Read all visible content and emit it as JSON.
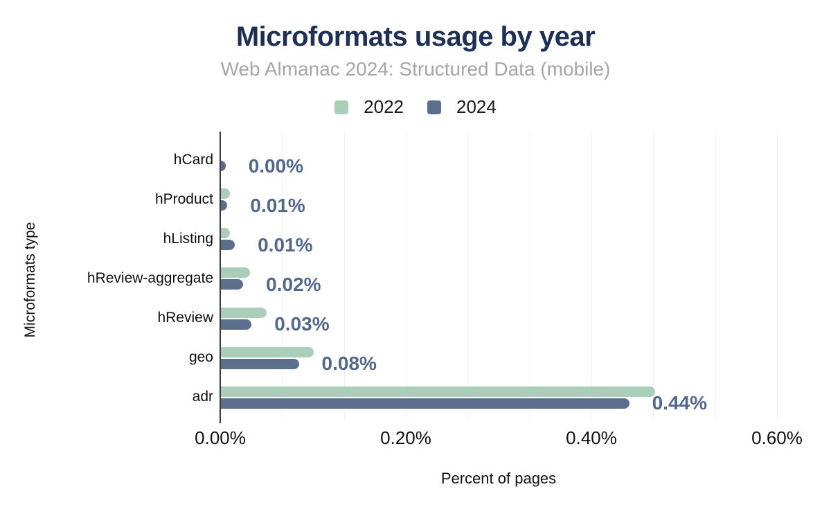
{
  "header": {
    "title": "Microformats usage by year",
    "subtitle": "Web Almanac 2024: Structured Data (mobile)"
  },
  "legend": {
    "items": [
      {
        "label": "2022",
        "color": "#abceba"
      },
      {
        "label": "2024",
        "color": "#5b6e8e"
      }
    ]
  },
  "chart_data": {
    "type": "bar",
    "orientation": "horizontal",
    "title": "Microformats usage by year",
    "subtitle": "Web Almanac 2024: Structured Data (mobile)",
    "xlabel": "Percent of pages",
    "ylabel": "Microformats type",
    "categories": [
      "hCard",
      "hProduct",
      "hListing",
      "hReview-aggregate",
      "hReview",
      "geo",
      "adr"
    ],
    "series": [
      {
        "name": "2022",
        "color": "#abceba",
        "values": [
          0,
          0.01,
          0.01,
          0.031,
          0.049,
          0.1,
          0.468
        ]
      },
      {
        "name": "2024",
        "color": "#5b6e8e",
        "values": [
          0.005,
          0.007,
          0.015,
          0.024,
          0.033,
          0.084,
          0.44
        ]
      }
    ],
    "data_labels": {
      "series": "2024",
      "values": [
        "0.00%",
        "0.01%",
        "0.01%",
        "0.02%",
        "0.03%",
        "0.08%",
        "0.44%"
      ],
      "color": "#54688c"
    },
    "x_ticks": [
      "0.00%",
      "0.20%",
      "0.40%",
      "0.60%"
    ],
    "x_tick_values": [
      0,
      0.2,
      0.4,
      0.6
    ],
    "xlim": [
      0,
      0.6
    ],
    "grid": {
      "vertical": true,
      "minor_divisions": 9
    },
    "legend_position": "top"
  },
  "colors": {
    "title": "#1e3155",
    "subtitle": "#a6a6a6",
    "axis_line": "#3a3a3a",
    "gridline": "#f0f0f0",
    "background": "#ffffff",
    "tick_text": "#111111"
  }
}
